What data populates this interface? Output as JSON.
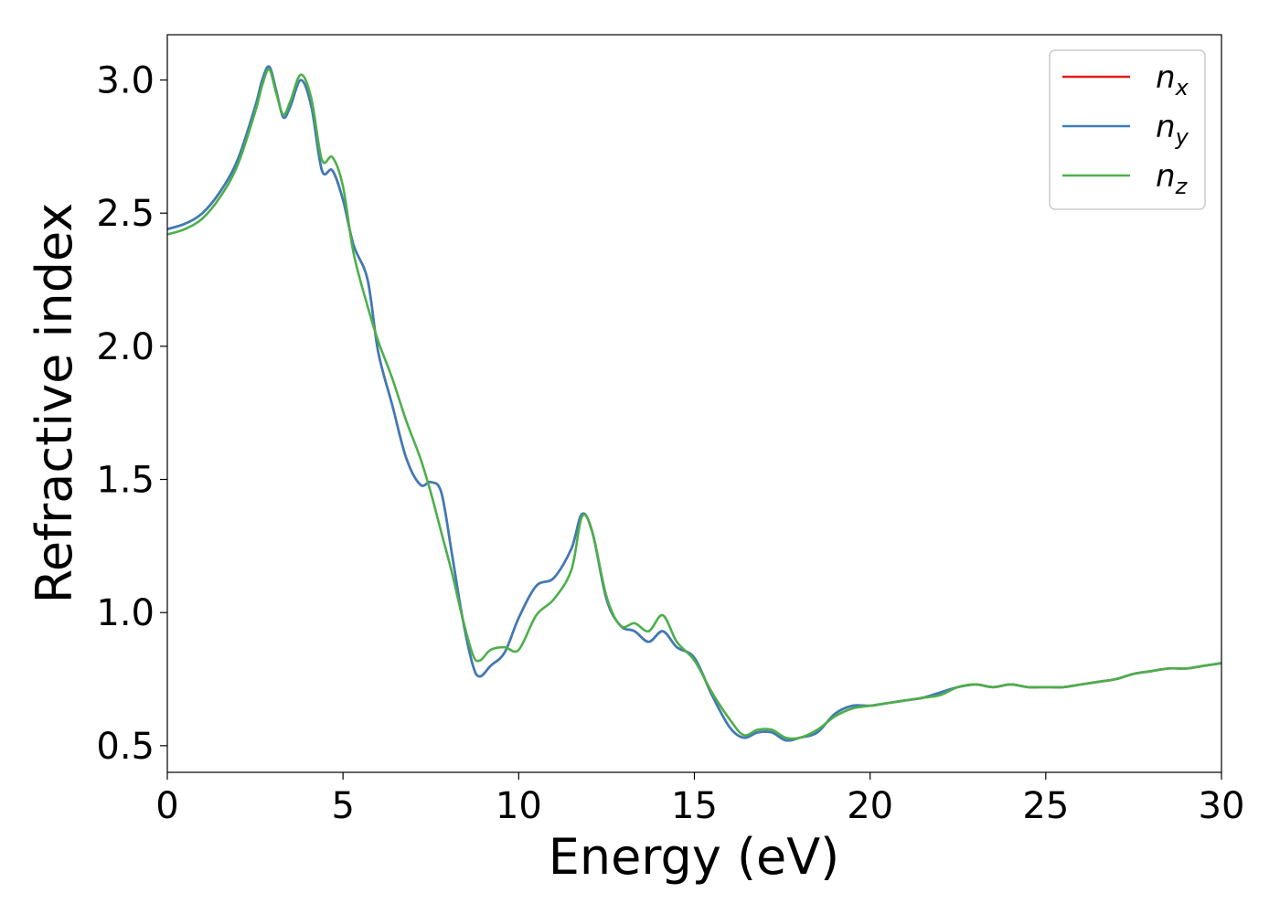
{
  "chart_data": {
    "type": "line",
    "title": "",
    "xlabel": "Energy (eV)",
    "ylabel": "Refractive index",
    "xlim": [
      0,
      30
    ],
    "ylim": [
      0.4,
      3.17
    ],
    "xticks": [
      0,
      5,
      10,
      15,
      20,
      25,
      30
    ],
    "xtick_labels": [
      "0",
      "5",
      "10",
      "15",
      "20",
      "25",
      "30"
    ],
    "yticks": [
      0.5,
      1.0,
      1.5,
      2.0,
      2.5,
      3.0
    ],
    "ytick_labels": [
      "0.5",
      "1.0",
      "1.5",
      "2.0",
      "2.5",
      "3.0"
    ],
    "grid": false,
    "legend_position": "top-right",
    "series": [
      {
        "name": "n_x",
        "label_main": "n",
        "label_sub": "x",
        "color": "#e41a1c",
        "x": [
          0,
          0.5,
          1,
          1.5,
          2,
          2.5,
          2.7,
          2.9,
          3.1,
          3.3,
          3.5,
          3.8,
          4.1,
          4.4,
          4.7,
          5.0,
          5.3,
          5.7,
          6.0,
          6.4,
          6.8,
          7.2,
          7.5,
          7.8,
          8.1,
          8.4,
          8.7,
          8.9,
          9.2,
          9.6,
          10.0,
          10.5,
          11.0,
          11.5,
          11.8,
          12.1,
          12.5,
          12.9,
          13.3,
          13.7,
          14.1,
          14.5,
          15.0,
          15.5,
          16.0,
          16.4,
          16.8,
          17.2,
          17.6,
          18.0,
          18.5,
          19.0,
          19.5,
          20.0,
          20.5,
          21.0,
          21.5,
          22.0,
          22.5,
          23.0,
          23.5,
          24.0,
          24.5,
          25.0,
          25.5,
          26.0,
          26.5,
          27.0,
          27.5,
          28.0,
          28.5,
          29.0,
          29.5,
          30.0
        ],
        "y": [
          2.44,
          2.46,
          2.5,
          2.58,
          2.7,
          2.9,
          3.0,
          3.05,
          2.96,
          2.86,
          2.9,
          3.0,
          2.9,
          2.66,
          2.66,
          2.55,
          2.38,
          2.25,
          1.98,
          1.78,
          1.58,
          1.48,
          1.49,
          1.45,
          1.22,
          0.98,
          0.8,
          0.76,
          0.8,
          0.85,
          0.98,
          1.1,
          1.13,
          1.24,
          1.37,
          1.3,
          1.05,
          0.95,
          0.93,
          0.89,
          0.93,
          0.87,
          0.83,
          0.69,
          0.57,
          0.53,
          0.55,
          0.55,
          0.52,
          0.53,
          0.55,
          0.62,
          0.65,
          0.65,
          0.66,
          0.67,
          0.68,
          0.7,
          0.72,
          0.73,
          0.72,
          0.73,
          0.72,
          0.72,
          0.72,
          0.73,
          0.74,
          0.75,
          0.77,
          0.78,
          0.79,
          0.79,
          0.8,
          0.81
        ]
      },
      {
        "name": "n_y",
        "label_main": "n",
        "label_sub": "y",
        "color": "#3a7dba",
        "x": [
          0,
          0.5,
          1,
          1.5,
          2,
          2.5,
          2.7,
          2.9,
          3.1,
          3.3,
          3.5,
          3.8,
          4.1,
          4.4,
          4.7,
          5.0,
          5.3,
          5.7,
          6.0,
          6.4,
          6.8,
          7.2,
          7.5,
          7.8,
          8.1,
          8.4,
          8.7,
          8.9,
          9.2,
          9.6,
          10.0,
          10.5,
          11.0,
          11.5,
          11.8,
          12.1,
          12.5,
          12.9,
          13.3,
          13.7,
          14.1,
          14.5,
          15.0,
          15.5,
          16.0,
          16.4,
          16.8,
          17.2,
          17.6,
          18.0,
          18.5,
          19.0,
          19.5,
          20.0,
          20.5,
          21.0,
          21.5,
          22.0,
          22.5,
          23.0,
          23.5,
          24.0,
          24.5,
          25.0,
          25.5,
          26.0,
          26.5,
          27.0,
          27.5,
          28.0,
          28.5,
          29.0,
          29.5,
          30.0
        ],
        "y": [
          2.44,
          2.46,
          2.5,
          2.58,
          2.7,
          2.9,
          3.0,
          3.05,
          2.96,
          2.86,
          2.9,
          3.0,
          2.9,
          2.66,
          2.66,
          2.55,
          2.38,
          2.25,
          1.98,
          1.78,
          1.58,
          1.48,
          1.49,
          1.45,
          1.22,
          0.98,
          0.8,
          0.76,
          0.8,
          0.85,
          0.98,
          1.1,
          1.13,
          1.24,
          1.37,
          1.3,
          1.05,
          0.95,
          0.93,
          0.89,
          0.93,
          0.87,
          0.83,
          0.69,
          0.57,
          0.53,
          0.55,
          0.55,
          0.52,
          0.53,
          0.55,
          0.62,
          0.65,
          0.65,
          0.66,
          0.67,
          0.68,
          0.7,
          0.72,
          0.73,
          0.72,
          0.73,
          0.72,
          0.72,
          0.72,
          0.73,
          0.74,
          0.75,
          0.77,
          0.78,
          0.79,
          0.79,
          0.8,
          0.81
        ]
      },
      {
        "name": "n_z",
        "label_main": "n",
        "label_sub": "z",
        "color": "#4daf4a",
        "x": [
          0,
          0.5,
          1,
          1.5,
          2,
          2.5,
          2.7,
          2.9,
          3.1,
          3.3,
          3.5,
          3.8,
          4.1,
          4.4,
          4.7,
          5.0,
          5.3,
          5.7,
          6.0,
          6.4,
          6.8,
          7.2,
          7.5,
          7.8,
          8.1,
          8.4,
          8.7,
          8.9,
          9.2,
          9.6,
          10.0,
          10.5,
          11.0,
          11.5,
          11.8,
          12.1,
          12.5,
          12.9,
          13.3,
          13.7,
          14.1,
          14.5,
          15.0,
          15.5,
          16.0,
          16.4,
          16.8,
          17.2,
          17.6,
          18.0,
          18.5,
          19.0,
          19.5,
          20.0,
          20.5,
          21.0,
          21.5,
          22.0,
          22.5,
          23.0,
          23.5,
          24.0,
          24.5,
          25.0,
          25.5,
          26.0,
          26.5,
          27.0,
          27.5,
          28.0,
          28.5,
          29.0,
          29.5,
          30.0
        ],
        "y": [
          2.42,
          2.44,
          2.48,
          2.56,
          2.68,
          2.88,
          2.98,
          3.04,
          2.95,
          2.87,
          2.92,
          3.02,
          2.93,
          2.7,
          2.71,
          2.6,
          2.35,
          2.15,
          2.02,
          1.88,
          1.72,
          1.58,
          1.45,
          1.3,
          1.15,
          0.98,
          0.84,
          0.82,
          0.86,
          0.87,
          0.86,
          0.99,
          1.05,
          1.16,
          1.36,
          1.3,
          1.06,
          0.95,
          0.96,
          0.93,
          0.99,
          0.89,
          0.82,
          0.7,
          0.6,
          0.54,
          0.56,
          0.56,
          0.53,
          0.53,
          0.56,
          0.61,
          0.64,
          0.65,
          0.66,
          0.67,
          0.68,
          0.69,
          0.72,
          0.73,
          0.72,
          0.73,
          0.72,
          0.72,
          0.72,
          0.73,
          0.74,
          0.75,
          0.77,
          0.78,
          0.79,
          0.79,
          0.8,
          0.81
        ]
      }
    ]
  }
}
